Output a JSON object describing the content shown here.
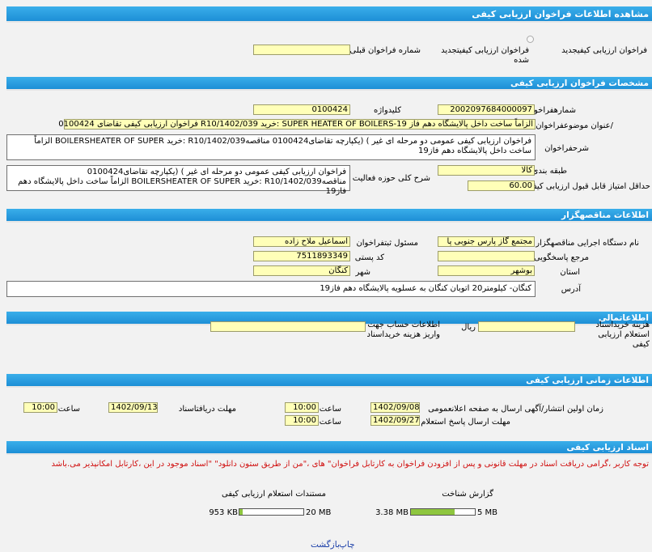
{
  "page_title": "مشاهده اطلاعات فراخوان ارزیابی کیفی",
  "type_row": {
    "option_new": "فراخوان ارزیابی کیفیجدید",
    "option_renewed": "فراخوان ارزیابی کیفیتجدید شده",
    "prev_call_label": "شماره فراخوان قبلی",
    "prev_call_value": ""
  },
  "specs": {
    "header": "مشخصات فراخوان ارزیابی کیفی",
    "call_number_label": "شمارهفراخوان",
    "call_number_value": "2002097684000097",
    "keyword_label": "کلیدواژه",
    "keyword_value": "0100424",
    "subject_label": "/عنوان موضوعفراخوان",
    "subject_value": "الزاماً ساخت داخل پالایشگاه دهم فاز SUPER HEATER OF BOILERS-19 :خرید R10/1402/039 فراخوان ارزیابی کیفی تقاضای 0100424",
    "description_label": "شرحفراخوان",
    "description_value": "فراخوان ارزیابی کیفی عمومی دو مرحله ای غیر ) (یکپارچه تقاضای0100424 مناقصهR10/1402/039 :خرید BOILERSHEATER OF SUPER الزاماً ساخت داخل پالایشگاه دهم فاز19",
    "category_label": "طبقه بندی موضوعی",
    "category_value": "کالا",
    "activity_label": "شرح کلی حوزه فعالیت",
    "activity_value": "فراخوان ارزیابی کیفی عمومی دو مرحله ای غیر ) (یکپارچه تقاضای0100424 مناقصهR10/1402/039 :خرید BOILERSHEATER OF SUPER الزاماً ساخت داخل پالایشگاه دهم فاز19",
    "min_score_label": "حداقل امتیاز قابل قبول ارزیابی کیفی",
    "min_score_value": "60.00"
  },
  "organizer": {
    "header": "اطلاعات مناقصهگزار",
    "exec_org_label": "نام دستگاه اجرایی مناقصهگزار",
    "exec_org_value": "مجتمع گاز پارس جنوبی پا",
    "registrar_label": "مسئول ثبتفراخوان",
    "registrar_value": "اسماعیل ملاح زاده",
    "reference_label": "مرجع پاسخگویی",
    "reference_value": "",
    "postal_label": "کد پستی",
    "postal_value": "7511893349",
    "province_label": "استان",
    "province_value": "بوشهر",
    "city_label": "شهر",
    "city_value": "کنگان",
    "address_label": "آدرس",
    "address_value": "کنگان- کیلومتر20 اتوبان کنگان به عسلویه پالایشگاه دهم فاز19"
  },
  "financial": {
    "header": "اطلاعاتمالی",
    "fee_label": "هزینه خریداسناد استعلام ارزیابی کیفی",
    "fee_value": "",
    "currency": "ریال",
    "account_label": "اطلاعات حساب جهت واریز هزینه خریداسناد",
    "account_value": ""
  },
  "timing": {
    "header": "اطلاعات زمانی ارزیابی کیفی",
    "publish_label": "زمان اولین انتشار/آگهی ارسال به صفحه اعلانعمومی",
    "publish_date": "1402/09/08",
    "publish_time": "10:00",
    "deadline_label": "مهلت ارسال پاسخ استعلام",
    "deadline_date": "1402/09/27",
    "deadline_time": "10:00",
    "receive_label": "مهلت دریافتاسناد",
    "receive_date": "1402/09/13",
    "receive_time": "10:00",
    "time_label": "ساعت"
  },
  "documents": {
    "header": "اسناد ارزیابی کیفی",
    "notice": "توجه کاربر ،گرامی دریافت اسناد در مهلت قانونی و پس از افزودن فراخوان به کارتابل فراخوان\" های ،\"من از طریق ستون دانلود\" \"اسناد موجود در این ،کارتابل امکانپذیر می.باشد",
    "report_label": "گزارش شناخت",
    "report_size": "3.38 MB",
    "report_max": "5 MB",
    "report_fill": 0.68,
    "docs_label": "مستندات استعلام ارزیابی کیفی",
    "docs_size": "953 KB",
    "docs_max": "20 MB",
    "docs_fill": 0.05
  },
  "footer": {
    "print": "چاپ",
    "back": "بازگشت"
  }
}
